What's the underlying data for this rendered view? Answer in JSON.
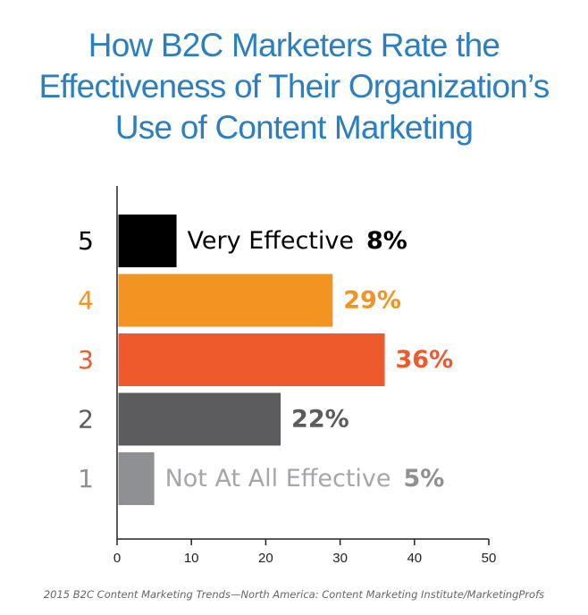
{
  "title_lines": [
    "How B2C Marketers Rate the",
    "Effectiveness of Their Organization’s",
    "Use of Content Marketing"
  ],
  "source": "2015 B2C Content Marketing Trends—North America: Content Marketing Institute/MarketingProfs",
  "colors": {
    "title": "#2a7fc2",
    "axis": "#222222"
  },
  "chart_data": {
    "type": "bar",
    "orientation": "horizontal",
    "title": "How B2C Marketers Rate the Effectiveness of Their Organization’s Use of Content Marketing",
    "xlim": [
      0,
      50
    ],
    "xticks": [
      0,
      10,
      20,
      30,
      40,
      50
    ],
    "grid": false,
    "legend": "none",
    "bars": [
      {
        "category": "5",
        "value": 8,
        "value_label": "8%",
        "inline_label": "Very Effective",
        "bar_color": "#000000",
        "label_color": "#000000",
        "value_color": "#000000"
      },
      {
        "category": "4",
        "value": 29,
        "value_label": "29%",
        "inline_label": "",
        "bar_color": "#f39321",
        "label_color": "#f39321",
        "value_color": "#f39321"
      },
      {
        "category": "3",
        "value": 36,
        "value_label": "36%",
        "inline_label": "",
        "bar_color": "#ee5a2b",
        "label_color": "#ee5a2b",
        "value_color": "#ee5a2b"
      },
      {
        "category": "2",
        "value": 22,
        "value_label": "22%",
        "inline_label": "",
        "bar_color": "#5c5c5f",
        "label_color": "#5c5c5f",
        "value_color": "#5c5c5f"
      },
      {
        "category": "1",
        "value": 5,
        "value_label": "5%",
        "inline_label": "Not At All Effective",
        "bar_color": "#8f9094",
        "label_color": "#8f9094",
        "value_color": "#8f9094",
        "inline_color": "#a5a6aa"
      }
    ]
  }
}
